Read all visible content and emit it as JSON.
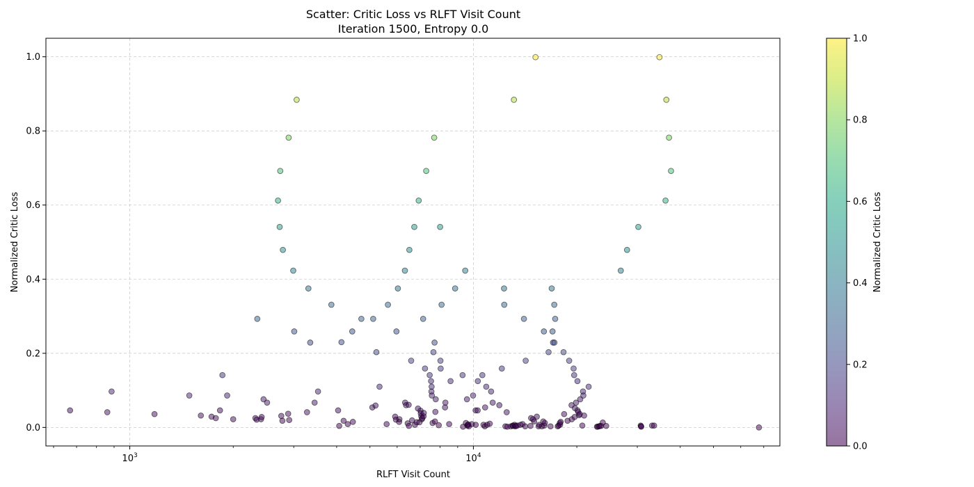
{
  "chart_data": {
    "type": "scatter",
    "title": "Scatter: Critic Loss vs RLFT Visit Count",
    "subtitle": "Iteration 1500, Entropy 0.0",
    "xlabel": "RLFT Visit Count",
    "ylabel": "Normalized Critic Loss",
    "xscale": "log",
    "xlim": [
      570,
      78000
    ],
    "ylim": [
      -0.05,
      1.05
    ],
    "x_major_ticks": [
      {
        "value": 1000,
        "base": "10",
        "exp": "3"
      },
      {
        "value": 10000,
        "base": "10",
        "exp": "4"
      }
    ],
    "y_ticks": [
      0.0,
      0.2,
      0.4,
      0.6,
      0.8,
      1.0
    ],
    "y_tick_labels": [
      "0.0",
      "0.2",
      "0.4",
      "0.6",
      "0.8",
      "1.0"
    ],
    "grid": true,
    "colorbar": {
      "label": "Normalized Critic Loss",
      "colormap": "viridis",
      "range": [
        0.0,
        1.0
      ],
      "ticks": [
        0.0,
        0.2,
        0.4,
        0.6,
        0.8,
        1.0
      ],
      "tick_labels": [
        "0.0",
        "0.2",
        "0.4",
        "0.6",
        "0.8",
        "1.0"
      ]
    },
    "points": [
      [
        670,
        0.046
      ],
      [
        860,
        0.041
      ],
      [
        885,
        0.097
      ],
      [
        1180,
        0.036
      ],
      [
        1490,
        0.086
      ],
      [
        1610,
        0.032
      ],
      [
        1730,
        0.029
      ],
      [
        1780,
        0.025
      ],
      [
        1830,
        0.046
      ],
      [
        1860,
        0.141
      ],
      [
        1920,
        0.086
      ],
      [
        2000,
        0.022
      ],
      [
        2320,
        0.025
      ],
      [
        2340,
        0.021
      ],
      [
        2350,
        0.293
      ],
      [
        2410,
        0.022
      ],
      [
        2420,
        0.028
      ],
      [
        2450,
        0.076
      ],
      [
        2510,
        0.067
      ],
      [
        2700,
        0.612
      ],
      [
        2730,
        0.541
      ],
      [
        2740,
        0.692
      ],
      [
        2760,
        0.031
      ],
      [
        2780,
        0.018
      ],
      [
        2790,
        0.479
      ],
      [
        2890,
        0.037
      ],
      [
        2900,
        0.782
      ],
      [
        2910,
        0.02
      ],
      [
        2990,
        0.423
      ],
      [
        3010,
        0.259
      ],
      [
        3060,
        0.884
      ],
      [
        3280,
        0.041
      ],
      [
        3310,
        0.375
      ],
      [
        3350,
        0.229
      ],
      [
        3450,
        0.067
      ],
      [
        3530,
        0.097
      ],
      [
        3860,
        0.331
      ],
      [
        4040,
        0.046
      ],
      [
        4070,
        0.004
      ],
      [
        4130,
        0.23
      ],
      [
        4190,
        0.018
      ],
      [
        4310,
        0.009
      ],
      [
        4440,
        0.259
      ],
      [
        4460,
        0.015
      ],
      [
        4720,
        0.293
      ],
      [
        5080,
        0.054
      ],
      [
        5110,
        0.293
      ],
      [
        5190,
        0.059
      ],
      [
        5220,
        0.203
      ],
      [
        5330,
        0.11
      ],
      [
        5590,
        0.009
      ],
      [
        5640,
        0.331
      ],
      [
        5920,
        0.029
      ],
      [
        5950,
        0.021
      ],
      [
        5970,
        0.259
      ],
      [
        6030,
        0.375
      ],
      [
        6080,
        0.015
      ],
      [
        6090,
        0.022
      ],
      [
        6320,
        0.423
      ],
      [
        6330,
        0.067
      ],
      [
        6370,
        0.06
      ],
      [
        6440,
        0.011
      ],
      [
        6480,
        0.061
      ],
      [
        6490,
        0.004
      ],
      [
        6510,
        0.479
      ],
      [
        6590,
        0.18
      ],
      [
        6630,
        0.019
      ],
      [
        6730,
        0.541
      ],
      [
        6760,
        0.007
      ],
      [
        6840,
        0.014
      ],
      [
        6900,
        0.051
      ],
      [
        6930,
        0.612
      ],
      [
        6970,
        0.014
      ],
      [
        7020,
        0.045
      ],
      [
        7030,
        0.038
      ],
      [
        7050,
        0.03
      ],
      [
        7080,
        0.022
      ],
      [
        7100,
        0.025
      ],
      [
        7140,
        0.293
      ],
      [
        7160,
        0.03
      ],
      [
        7170,
        0.039
      ],
      [
        7230,
        0.159
      ],
      [
        7290,
        0.692
      ],
      [
        7460,
        0.141
      ],
      [
        7530,
        0.125
      ],
      [
        7550,
        0.097
      ],
      [
        7560,
        0.11
      ],
      [
        7570,
        0.086
      ],
      [
        7610,
        0.012
      ],
      [
        7650,
        0.203
      ],
      [
        7690,
        0.782
      ],
      [
        7710,
        0.229
      ],
      [
        7730,
        0.016
      ],
      [
        7750,
        0.042
      ],
      [
        7770,
        0.076
      ],
      [
        7930,
        0.006
      ],
      [
        8000,
        0.541
      ],
      [
        8020,
        0.18
      ],
      [
        8030,
        0.159
      ],
      [
        8080,
        0.331
      ],
      [
        8270,
        0.054
      ],
      [
        8290,
        0.067
      ],
      [
        8500,
        0.009
      ],
      [
        8580,
        0.125
      ],
      [
        8850,
        0.375
      ],
      [
        9300,
        0.141
      ],
      [
        9330,
        0.002
      ],
      [
        9470,
        0.423
      ],
      [
        9510,
        0.012
      ],
      [
        9580,
        0.076
      ],
      [
        9600,
        0.005
      ],
      [
        9640,
        0.007
      ],
      [
        9670,
        0.008
      ],
      [
        9700,
        0.003
      ],
      [
        9900,
        0.009
      ],
      [
        9980,
        0.086
      ],
      [
        10150,
        0.046
      ],
      [
        10160,
        0.007
      ],
      [
        10290,
        0.046
      ],
      [
        10300,
        0.125
      ],
      [
        10620,
        0.141
      ],
      [
        10700,
        0.007
      ],
      [
        10800,
        0.003
      ],
      [
        10820,
        0.054
      ],
      [
        10900,
        0.11
      ],
      [
        10970,
        0.007
      ],
      [
        11160,
        0.01
      ],
      [
        11260,
        0.097
      ],
      [
        11380,
        0.067
      ],
      [
        11900,
        0.06
      ],
      [
        12100,
        0.159
      ],
      [
        12280,
        0.375
      ],
      [
        12300,
        0.331
      ],
      [
        12390,
        0.003
      ],
      [
        12500,
        0.041
      ],
      [
        12560,
        0.002
      ],
      [
        12850,
        0.003
      ],
      [
        13020,
        0.005
      ],
      [
        13050,
        0.004
      ],
      [
        13120,
        0.884
      ],
      [
        13180,
        0.007
      ],
      [
        13230,
        0.003
      ],
      [
        13310,
        0.004
      ],
      [
        13430,
        0.005
      ],
      [
        13710,
        0.007
      ],
      [
        13900,
        0.009
      ],
      [
        14030,
        0.293
      ],
      [
        14150,
        0.003
      ],
      [
        14200,
        0.18
      ],
      [
        14660,
        0.004
      ],
      [
        14720,
        0.025
      ],
      [
        14920,
        0.022
      ],
      [
        15030,
        0.016
      ],
      [
        15160,
        0.999
      ],
      [
        15300,
        0.029
      ],
      [
        15480,
        0.003
      ],
      [
        15550,
        0.007
      ],
      [
        15830,
        0.003
      ],
      [
        15970,
        0.016
      ],
      [
        16040,
        0.259
      ],
      [
        16090,
        0.005
      ],
      [
        16150,
        0.012
      ],
      [
        16550,
        0.203
      ],
      [
        16770,
        0.003
      ],
      [
        16900,
        0.375
      ],
      [
        17000,
        0.259
      ],
      [
        17050,
        0.229
      ],
      [
        17200,
        0.331
      ],
      [
        17210,
        0.229
      ],
      [
        17300,
        0.293
      ],
      [
        17600,
        0.003
      ],
      [
        17700,
        0.005
      ],
      [
        17850,
        0.012
      ],
      [
        17880,
        0.007
      ],
      [
        17950,
        0.015
      ],
      [
        18300,
        0.203
      ],
      [
        18370,
        0.036
      ],
      [
        18800,
        0.018
      ],
      [
        19000,
        0.18
      ],
      [
        19300,
        0.06
      ],
      [
        19340,
        0.022
      ],
      [
        19580,
        0.159
      ],
      [
        19650,
        0.141
      ],
      [
        19700,
        0.028
      ],
      [
        19750,
        0.052
      ],
      [
        19900,
        0.067
      ],
      [
        20080,
        0.125
      ],
      [
        20100,
        0.046
      ],
      [
        20200,
        0.041
      ],
      [
        20300,
        0.033
      ],
      [
        20410,
        0.036
      ],
      [
        20460,
        0.076
      ],
      [
        20750,
        0.005
      ],
      [
        20850,
        0.097
      ],
      [
        20900,
        0.086
      ],
      [
        21000,
        0.032
      ],
      [
        21650,
        0.11
      ],
      [
        22900,
        0.002
      ],
      [
        23000,
        0.002
      ],
      [
        23200,
        0.003
      ],
      [
        23350,
        0.004
      ],
      [
        23550,
        0.004
      ],
      [
        23800,
        0.013
      ],
      [
        24350,
        0.004
      ],
      [
        26850,
        0.423
      ],
      [
        28000,
        0.479
      ],
      [
        30200,
        0.541
      ],
      [
        30680,
        0.005
      ],
      [
        30750,
        0.003
      ],
      [
        30800,
        0.002
      ],
      [
        33120,
        0.005
      ],
      [
        33580,
        0.005
      ],
      [
        34800,
        0.999
      ],
      [
        36250,
        0.612
      ],
      [
        36450,
        0.884
      ],
      [
        37100,
        0.782
      ],
      [
        37600,
        0.692
      ],
      [
        67800,
        0.0
      ]
    ]
  }
}
